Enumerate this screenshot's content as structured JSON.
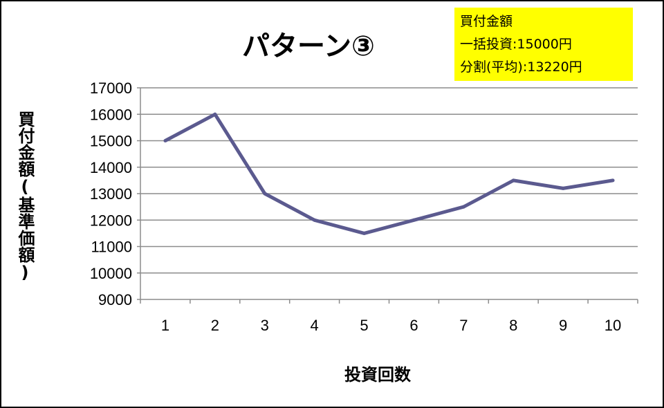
{
  "chart_data": {
    "type": "line",
    "title": "パターン③",
    "xlabel": "投資回数",
    "ylabel": "買付金額(基準価額)",
    "categories": [
      "1",
      "2",
      "3",
      "4",
      "5",
      "6",
      "7",
      "8",
      "9",
      "10"
    ],
    "series": [
      {
        "values": [
          15000,
          16000,
          13000,
          12000,
          11500,
          12000,
          12500,
          13500,
          13200,
          13500
        ]
      }
    ],
    "ylim": [
      9000,
      17000
    ],
    "ytick_step": 1000,
    "grid": true,
    "line_color": "#5B5A8F",
    "annotation": {
      "lines": [
        "買付金額",
        "一括投資:15000円",
        "分割(平均):13220円"
      ],
      "background": "#FFFF00"
    }
  }
}
